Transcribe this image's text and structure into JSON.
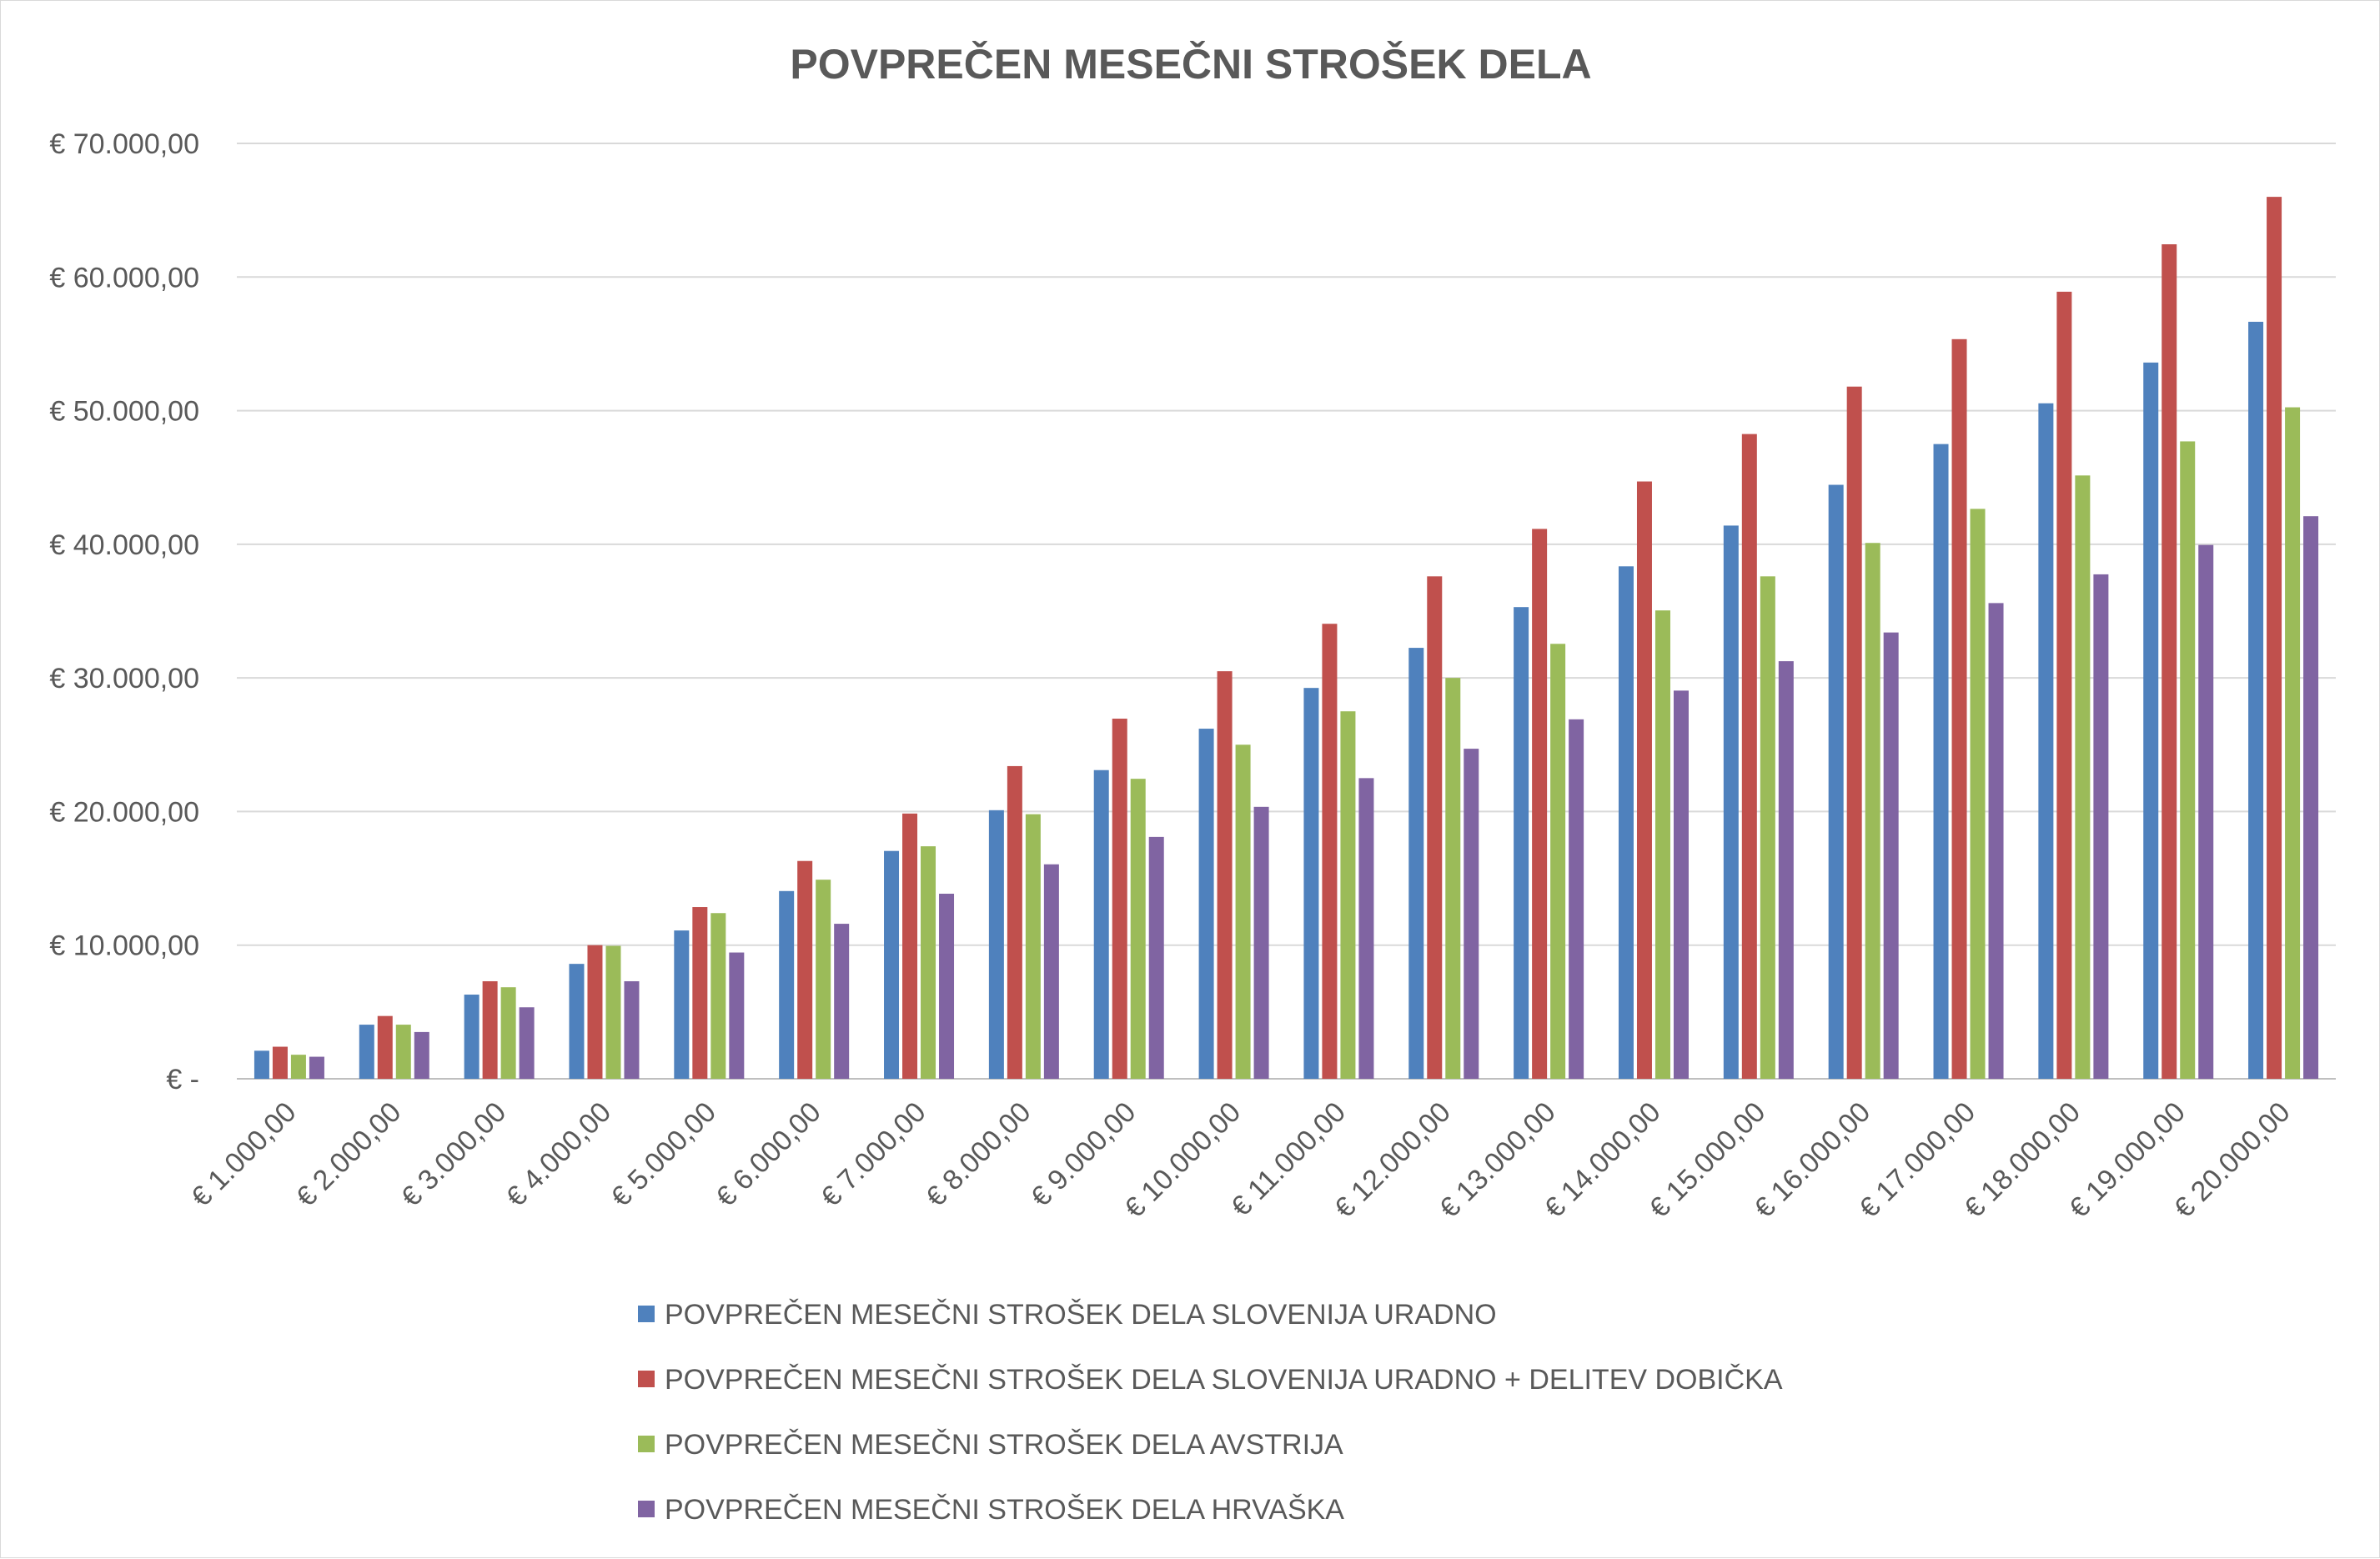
{
  "chart_data": {
    "type": "bar",
    "title": "POVPREČEN MESEČNI STROŠEK DELA",
    "xlabel": "",
    "ylabel": "",
    "ylim": [
      0,
      70000
    ],
    "y_ticks": [
      0,
      10000,
      20000,
      30000,
      40000,
      50000,
      60000,
      70000
    ],
    "y_tick_labels": [
      "€ -",
      "€ 10.000,00",
      "€ 20.000,00",
      "€ 30.000,00",
      "€ 40.000,00",
      "€ 50.000,00",
      "€ 60.000,00",
      "€ 70.000,00"
    ],
    "grid": true,
    "legend_position": "bottom",
    "categories": [
      "€ 1.000,00",
      "€ 2.000,00",
      "€ 3.000,00",
      "€ 4.000,00",
      "€ 5.000,00",
      "€ 6.000,00",
      "€ 7.000,00",
      "€ 8.000,00",
      "€ 9.000,00",
      "€ 10.000,00",
      "€ 11.000,00",
      "€ 12.000,00",
      "€ 13.000,00",
      "€ 14.000,00",
      "€ 15.000,00",
      "€ 16.000,00",
      "€ 17.000,00",
      "€ 18.000,00",
      "€ 19.000,00",
      "€ 20.000,00"
    ],
    "series": [
      {
        "name": "POVPREČEN MESEČNI STROŠEK DELA SLOVENIJA URADNO",
        "color": "#4F81BD",
        "values": [
          2100,
          4050,
          6300,
          8600,
          11100,
          14050,
          17050,
          20100,
          23100,
          26200,
          29250,
          32250,
          35300,
          38350,
          41400,
          44450,
          47500,
          50550,
          53600,
          56650
        ]
      },
      {
        "name": "POVPREČEN MESEČNI STROŠEK DELA SLOVENIJA URADNO + DELITEV DOBIČKA",
        "color": "#C0504D",
        "values": [
          2400,
          4700,
          7300,
          10000,
          12850,
          16300,
          19850,
          23400,
          26950,
          30500,
          34050,
          37600,
          41150,
          44700,
          48250,
          51800,
          55350,
          58900,
          62450,
          66000
        ]
      },
      {
        "name": "POVPREČEN MESEČNI STROŠEK DELA AVSTRIJA",
        "color": "#9BBB59",
        "values": [
          1800,
          4050,
          6850,
          9950,
          12400,
          14900,
          17400,
          19800,
          22450,
          25000,
          27500,
          30000,
          32550,
          35050,
          37600,
          40100,
          42650,
          45150,
          47700,
          50250
        ]
      },
      {
        "name": "POVPREČEN MESEČNI STROŠEK DELA HRVAŠKA",
        "color": "#8064A2",
        "values": [
          1650,
          3500,
          5350,
          7300,
          9450,
          11600,
          13850,
          16050,
          18100,
          20350,
          22500,
          24700,
          26900,
          29050,
          31250,
          33400,
          35600,
          37750,
          39950,
          42100
        ]
      }
    ]
  },
  "colors": {
    "grid": "#d9d9d9",
    "axis": "#bfbfbf",
    "text": "#595959"
  }
}
